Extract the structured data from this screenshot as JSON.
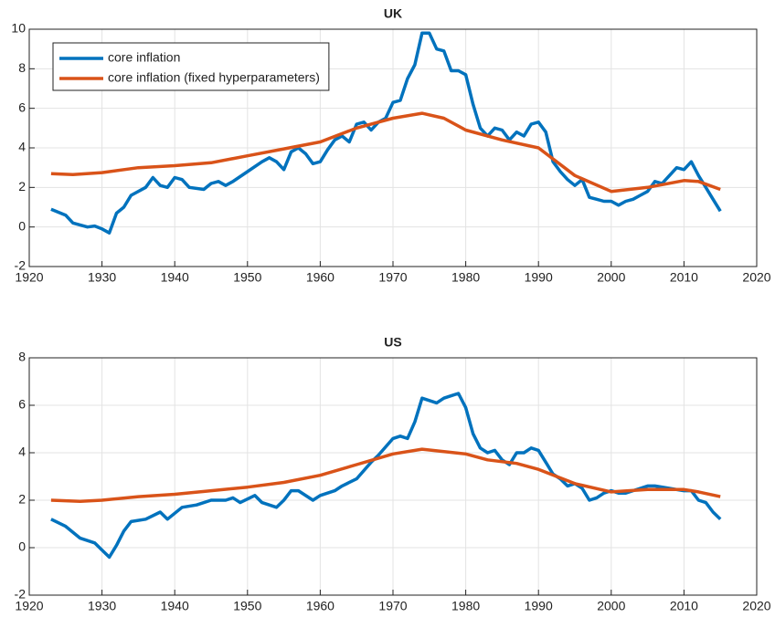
{
  "chart_data": [
    {
      "type": "line",
      "title": "UK",
      "xlim": [
        1920,
        2020
      ],
      "xticks": [
        1920,
        1930,
        1940,
        1950,
        1960,
        1970,
        1980,
        1990,
        2000,
        2010,
        2020
      ],
      "ylim": [
        -2,
        10
      ],
      "yticks": [
        -2,
        0,
        2,
        4,
        6,
        8,
        10
      ],
      "grid": true,
      "legend": "upper left",
      "series": [
        {
          "name": "core inflation",
          "color": "#0072bd",
          "x": [
            1923,
            1925,
            1926,
            1928,
            1929,
            1930,
            1931,
            1932,
            1933,
            1934,
            1936,
            1937,
            1938,
            1939,
            1940,
            1941,
            1942,
            1944,
            1945,
            1946,
            1947,
            1948,
            1950,
            1952,
            1953,
            1954,
            1955,
            1956,
            1957,
            1958,
            1959,
            1960,
            1961,
            1962,
            1963,
            1964,
            1965,
            1966,
            1967,
            1968,
            1969,
            1970,
            1971,
            1972,
            1973,
            1974,
            1975,
            1976,
            1977,
            1978,
            1979,
            1980,
            1981,
            1982,
            1983,
            1984,
            1985,
            1986,
            1987,
            1988,
            1989,
            1990,
            1991,
            1992,
            1993,
            1994,
            1995,
            1996,
            1997,
            1998,
            1999,
            2000,
            2001,
            2002,
            2003,
            2004,
            2005,
            2006,
            2007,
            2008,
            2009,
            2010,
            2011,
            2012,
            2013,
            2014,
            2015
          ],
          "values": [
            0.9,
            0.6,
            0.2,
            0.0,
            0.05,
            -0.1,
            -0.3,
            0.7,
            1.0,
            1.6,
            2.0,
            2.5,
            2.1,
            2.0,
            2.5,
            2.4,
            2.0,
            1.9,
            2.2,
            2.3,
            2.1,
            2.3,
            2.8,
            3.3,
            3.5,
            3.3,
            2.9,
            3.8,
            4.0,
            3.7,
            3.2,
            3.3,
            3.9,
            4.4,
            4.6,
            4.3,
            5.2,
            5.3,
            4.9,
            5.3,
            5.5,
            6.3,
            6.4,
            7.5,
            8.2,
            9.8,
            9.8,
            9.0,
            8.9,
            7.9,
            7.9,
            7.7,
            6.2,
            5.0,
            4.6,
            5.0,
            4.9,
            4.4,
            4.8,
            4.6,
            5.2,
            5.3,
            4.8,
            3.3,
            2.8,
            2.4,
            2.1,
            2.4,
            1.5,
            1.4,
            1.3,
            1.3,
            1.1,
            1.3,
            1.4,
            1.6,
            1.8,
            2.3,
            2.2,
            2.6,
            3.0,
            2.9,
            3.3,
            2.6,
            2.0,
            1.4,
            0.8
          ]
        },
        {
          "name": "core inflation (fixed hyperparameters)",
          "color": "#d95319",
          "x": [
            1923,
            1926,
            1930,
            1935,
            1940,
            1945,
            1950,
            1955,
            1960,
            1965,
            1970,
            1974,
            1977,
            1980,
            1985,
            1990,
            1995,
            2000,
            2005,
            2010,
            2012,
            2015
          ],
          "values": [
            2.7,
            2.65,
            2.75,
            3.0,
            3.1,
            3.25,
            3.6,
            3.95,
            4.3,
            5.0,
            5.5,
            5.75,
            5.5,
            4.9,
            4.4,
            4.0,
            2.6,
            1.8,
            2.0,
            2.35,
            2.3,
            1.9
          ]
        }
      ]
    },
    {
      "type": "line",
      "title": "US",
      "xlim": [
        1920,
        2020
      ],
      "xticks": [
        1920,
        1930,
        1940,
        1950,
        1960,
        1970,
        1980,
        1990,
        2000,
        2010,
        2020
      ],
      "ylim": [
        -2,
        8
      ],
      "yticks": [
        -2,
        0,
        2,
        4,
        6,
        8
      ],
      "grid": true,
      "series": [
        {
          "color": "#0072bd",
          "x": [
            1923,
            1925,
            1927,
            1929,
            1930,
            1931,
            1932,
            1933,
            1934,
            1936,
            1938,
            1939,
            1941,
            1943,
            1945,
            1947,
            1948,
            1949,
            1951,
            1952,
            1954,
            1955,
            1956,
            1957,
            1959,
            1960,
            1962,
            1963,
            1965,
            1967,
            1968,
            1970,
            1971,
            1972,
            1973,
            1974,
            1976,
            1977,
            1978,
            1979,
            1980,
            1981,
            1982,
            1983,
            1984,
            1985,
            1986,
            1987,
            1988,
            1989,
            1990,
            1991,
            1992,
            1993,
            1994,
            1995,
            1996,
            1997,
            1998,
            1999,
            2000,
            2001,
            2002,
            2004,
            2005,
            2006,
            2008,
            2010,
            2011,
            2012,
            2013,
            2014,
            2015
          ],
          "values": [
            1.2,
            0.9,
            0.4,
            0.2,
            -0.1,
            -0.4,
            0.1,
            0.7,
            1.1,
            1.2,
            1.5,
            1.2,
            1.7,
            1.8,
            2.0,
            2.0,
            2.1,
            1.9,
            2.2,
            1.9,
            1.7,
            2.0,
            2.4,
            2.4,
            2.0,
            2.2,
            2.4,
            2.6,
            2.9,
            3.6,
            3.9,
            4.6,
            4.7,
            4.6,
            5.3,
            6.3,
            6.1,
            6.3,
            6.4,
            6.5,
            5.9,
            4.8,
            4.2,
            4.0,
            4.1,
            3.7,
            3.5,
            4.0,
            4.0,
            4.2,
            4.1,
            3.6,
            3.1,
            2.9,
            2.6,
            2.7,
            2.5,
            2.0,
            2.1,
            2.3,
            2.4,
            2.3,
            2.3,
            2.5,
            2.6,
            2.6,
            2.5,
            2.4,
            2.4,
            2.0,
            1.9,
            1.5,
            1.2
          ]
        },
        {
          "color": "#d95319",
          "x": [
            1923,
            1927,
            1930,
            1935,
            1940,
            1945,
            1950,
            1955,
            1960,
            1965,
            1970,
            1974,
            1980,
            1983,
            1987,
            1990,
            1995,
            2000,
            2005,
            2010,
            2012,
            2015
          ],
          "values": [
            2.0,
            1.95,
            2.0,
            2.15,
            2.25,
            2.4,
            2.55,
            2.75,
            3.05,
            3.5,
            3.95,
            4.15,
            3.95,
            3.7,
            3.55,
            3.3,
            2.7,
            2.35,
            2.45,
            2.45,
            2.35,
            2.15
          ]
        }
      ]
    }
  ]
}
